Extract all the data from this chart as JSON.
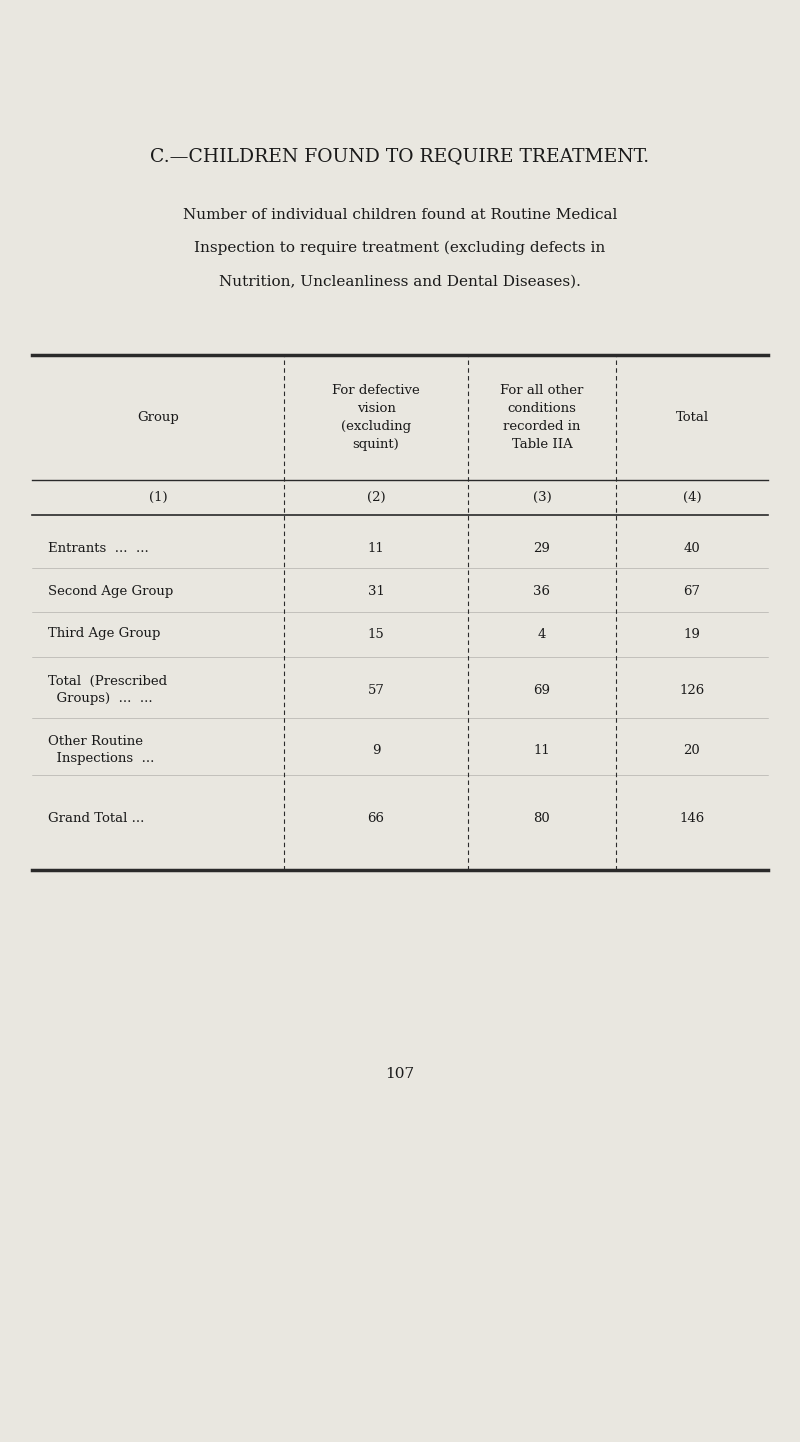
{
  "title": "C.—CHILDREN FOUND TO REQUIRE TREATMENT.",
  "subtitle_lines": [
    "Number of individual children found at Routine Medical",
    "Inspection to require treatment (excluding defects in",
    "Nutrition, Uncleanliness and Dental Diseases)."
  ],
  "rows": [
    [
      "Entrants  ...  ...",
      "11",
      "29",
      "40"
    ],
    [
      "Second Age Group",
      "31",
      "36",
      "67"
    ],
    [
      "Third Age Group",
      "15",
      "4",
      "19"
    ],
    [
      "Total  (Prescribed\n  Groups)  ...  ...",
      "57",
      "69",
      "126"
    ],
    [
      "Other Routine\n  Inspections  ...",
      "9",
      "11",
      "20"
    ],
    [
      "Grand Total ...",
      "66",
      "80",
      "146"
    ]
  ],
  "bg_color": "#e9e7e0",
  "text_color": "#1a1a1a",
  "page_number": "107",
  "divider_color": "#2a2a2a"
}
